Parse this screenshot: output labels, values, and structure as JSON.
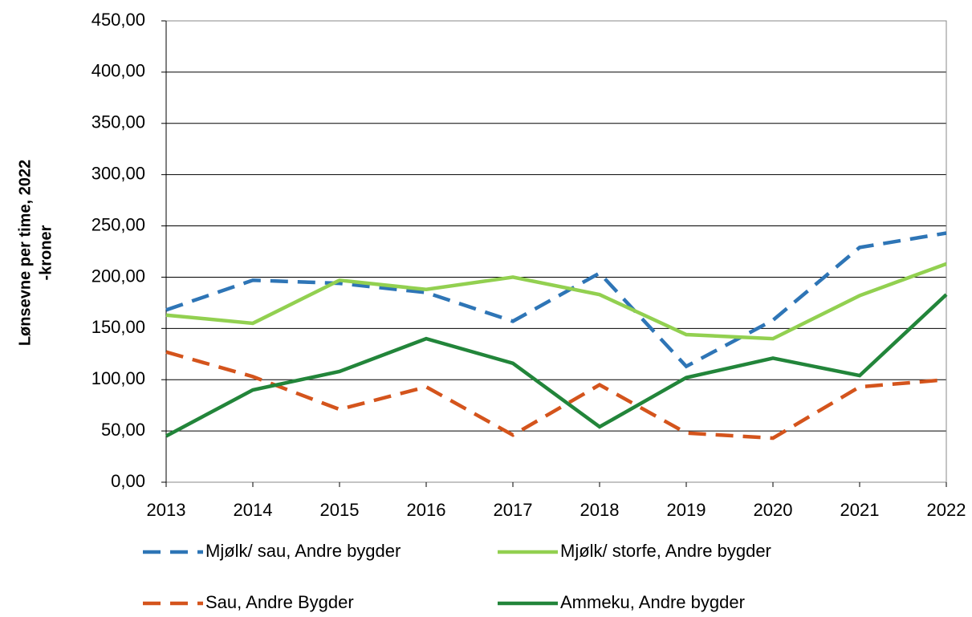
{
  "chart_data": {
    "type": "line",
    "y_label": [
      "Lønsevne per time, 2022",
      "-kroner"
    ],
    "categories": [
      "2013",
      "2014",
      "2015",
      "2016",
      "2017",
      "2018",
      "2019",
      "2020",
      "2021",
      "2022"
    ],
    "series": [
      {
        "name": "Mjølk/ sau, Andre bygder",
        "color": "#2e75b6",
        "dashed": true,
        "values": [
          168,
          197,
          194,
          185,
          157,
          204,
          113,
          158,
          229,
          243
        ]
      },
      {
        "name": "Mjølk/ storfe, Andre bygder",
        "color": "#92d050",
        "dashed": false,
        "values": [
          163,
          155,
          197,
          188,
          200,
          183,
          144,
          140,
          182,
          213
        ]
      },
      {
        "name": "Sau, Andre Bygder",
        "color": "#d4541c",
        "dashed": true,
        "values": [
          127,
          103,
          71,
          93,
          46,
          95,
          48,
          43,
          93,
          100
        ]
      },
      {
        "name": "Ammeku, Andre bygder",
        "color": "#22853a",
        "dashed": false,
        "values": [
          45,
          90,
          108,
          140,
          116,
          54,
          102,
          121,
          104,
          183
        ]
      }
    ],
    "ylim": [
      0,
      450
    ],
    "yticks": [
      {
        "value": 0,
        "label": "0,00"
      },
      {
        "value": 50,
        "label": "50,00"
      },
      {
        "value": 100,
        "label": "100,00"
      },
      {
        "value": 150,
        "label": "150,00"
      },
      {
        "value": 200,
        "label": "200,00"
      },
      {
        "value": 250,
        "label": "250,00"
      },
      {
        "value": 300,
        "label": "300,00"
      },
      {
        "value": 350,
        "label": "350,00"
      },
      {
        "value": 400,
        "label": "400,00"
      },
      {
        "value": 450,
        "label": "450,00"
      }
    ],
    "grid": true
  }
}
